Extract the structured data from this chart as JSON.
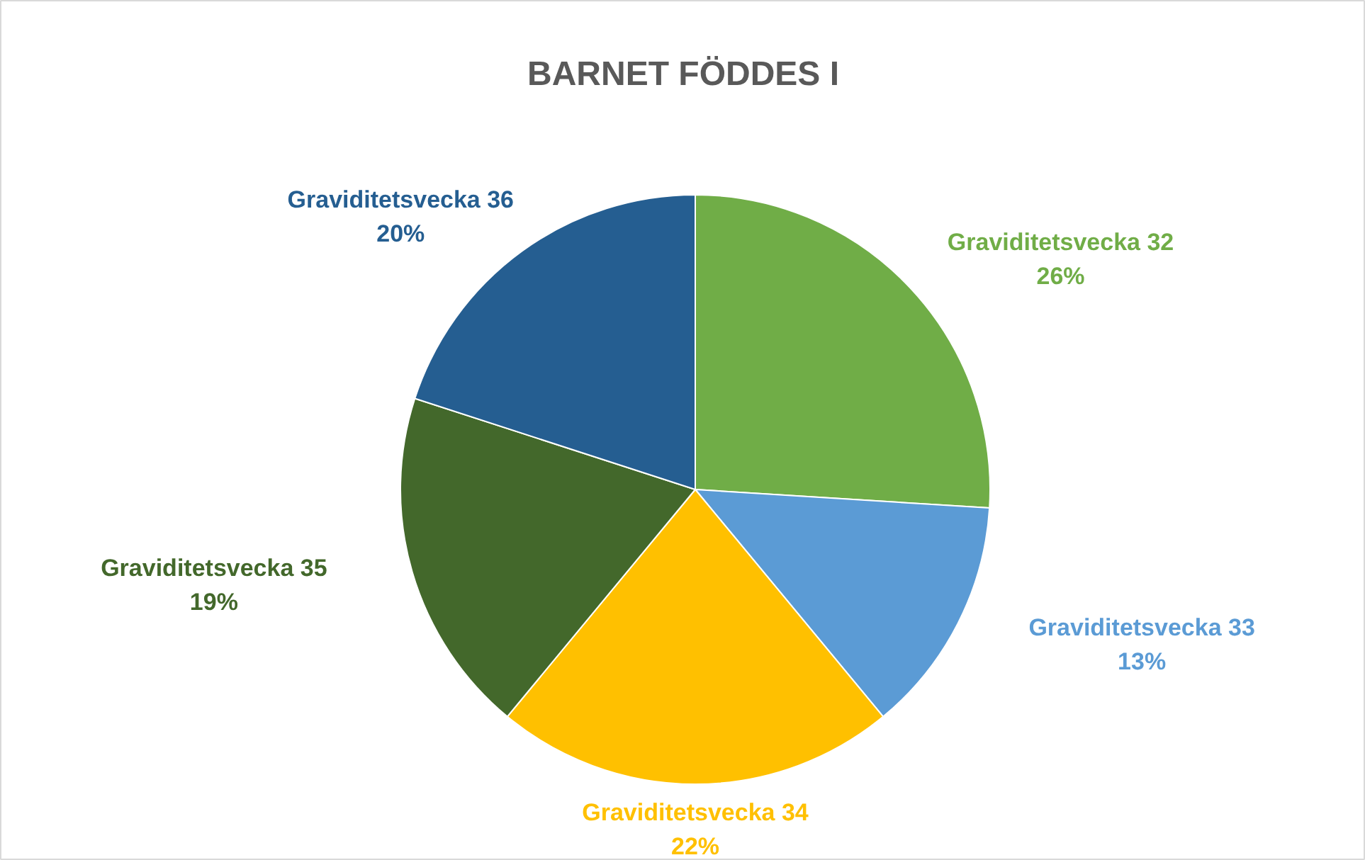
{
  "chart_data": {
    "type": "pie",
    "title": "BARNET FÖDDES I",
    "categories": [
      "Graviditetsvecka 32",
      "Graviditetsvecka 33",
      "Graviditetsvecka 34",
      "Graviditetsvecka 35",
      "Graviditetsvecka 36"
    ],
    "values": [
      26,
      13,
      22,
      19,
      20
    ],
    "colors": [
      "#70ad47",
      "#5b9bd5",
      "#ffc000",
      "#43682b",
      "#255e91"
    ],
    "value_labels": [
      "26%",
      "13%",
      "22%",
      "19%",
      "20%"
    ]
  }
}
